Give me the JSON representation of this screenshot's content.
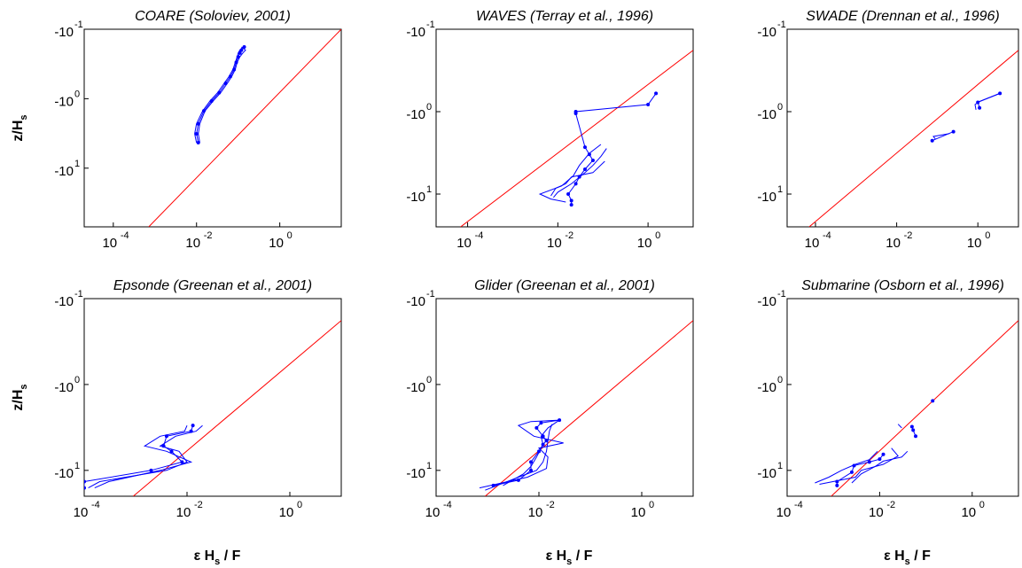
{
  "figure": {
    "xlabel_parts": [
      "ε H",
      "s",
      " / F"
    ],
    "ylabel_parts": [
      "z/H",
      "s"
    ]
  },
  "colors": {
    "data": "#0000ff",
    "reference": "#ff0000",
    "axes": "#000000"
  },
  "chart_data": [
    {
      "type": "line",
      "title": "COARE (Soloviev, 2001)",
      "xscale": "log",
      "yscale": "log",
      "xlim": [
        2e-05,
        30
      ],
      "ylim": [
        0.1,
        70
      ],
      "xticks": [
        {
          "base": "10",
          "exp": "-4"
        },
        {
          "base": "10",
          "exp": "-2"
        },
        {
          "base": "10",
          "exp": "0"
        }
      ],
      "yticks": [
        {
          "base": "-10",
          "exp": "-1"
        },
        {
          "base": "-10",
          "exp": "0"
        },
        {
          "base": "-10",
          "exp": "1"
        }
      ],
      "xlabel": "",
      "ylabel": "z/Hs",
      "reference": {
        "x": [
          0.00071,
          30
        ],
        "y": [
          70,
          0.1
        ]
      },
      "series": [
        {
          "marker": true,
          "x": [
            0.011,
            0.01,
            0.011,
            0.015,
            0.023,
            0.035,
            0.05,
            0.065,
            0.08,
            0.09,
            0.1,
            0.11,
            0.12,
            0.14
          ],
          "y": [
            4.3,
            3.2,
            2.3,
            1.5,
            1.08,
            0.82,
            0.6,
            0.48,
            0.38,
            0.3,
            0.25,
            0.22,
            0.2,
            0.18
          ]
        },
        {
          "marker": false,
          "x": [
            0.012,
            0.011,
            0.012,
            0.016,
            0.025,
            0.038,
            0.055,
            0.07,
            0.085,
            0.095,
            0.11,
            0.13,
            0.15,
            0.12
          ],
          "y": [
            4.3,
            3.2,
            2.3,
            1.5,
            1.08,
            0.82,
            0.6,
            0.48,
            0.38,
            0.3,
            0.25,
            0.22,
            0.2,
            0.18
          ]
        },
        {
          "marker": false,
          "x": [
            0.01,
            0.009,
            0.01,
            0.014,
            0.021,
            0.032,
            0.046,
            0.06,
            0.075,
            0.085,
            0.095,
            0.1,
            0.11,
            0.13
          ],
          "y": [
            4.3,
            3.2,
            2.3,
            1.5,
            1.08,
            0.82,
            0.6,
            0.48,
            0.38,
            0.3,
            0.25,
            0.22,
            0.2,
            0.18
          ]
        }
      ]
    },
    {
      "type": "line",
      "title": "WAVES (Terray et al., 1996)",
      "xscale": "log",
      "yscale": "log",
      "xlim": [
        2e-05,
        10
      ],
      "ylim": [
        0.1,
        25
      ],
      "xticks": [
        {
          "base": "10",
          "exp": "-4"
        },
        {
          "base": "10",
          "exp": "-2"
        },
        {
          "base": "10",
          "exp": "0"
        }
      ],
      "yticks": [
        {
          "base": "-10",
          "exp": "-1"
        },
        {
          "base": "-10",
          "exp": "0"
        },
        {
          "base": "-10",
          "exp": "1"
        }
      ],
      "xlabel": "",
      "ylabel": "",
      "reference": {
        "x": [
          7e-05,
          10
        ],
        "y": [
          25,
          0.18
        ]
      },
      "series": [
        {
          "marker": true,
          "x": [
            1.5,
            1.0,
            0.025,
            0.025,
            0.04,
            0.05,
            0.06,
            0.04,
            0.03,
            0.025,
            0.017,
            0.02,
            0.02
          ],
          "y": [
            0.6,
            0.82,
            1.0,
            1.05,
            2.7,
            3.3,
            3.9,
            5.0,
            6.2,
            7.5,
            10.0,
            12.0,
            13.5
          ]
        },
        {
          "marker": false,
          "x": [
            0.09,
            0.05,
            0.03,
            0.022,
            0.012,
            0.004,
            0.007,
            0.015
          ],
          "y": [
            2.5,
            3.2,
            4.5,
            6.0,
            8.0,
            10.0,
            11.5,
            12.5
          ]
        },
        {
          "marker": false,
          "x": [
            0.12,
            0.09,
            0.06,
            0.04,
            0.02,
            0.01,
            0.008
          ],
          "y": [
            2.8,
            3.5,
            4.5,
            5.5,
            7.5,
            9.5,
            11.0
          ]
        },
        {
          "marker": false,
          "x": [
            0.11,
            0.06,
            0.02,
            0.015,
            0.009,
            0.007
          ],
          "y": [
            4.0,
            5.5,
            6.2,
            7.5,
            8.5,
            10.5
          ]
        }
      ]
    },
    {
      "type": "line",
      "title": "SWADE (Drennan et al., 1996)",
      "xscale": "log",
      "yscale": "log",
      "xlim": [
        2e-05,
        10
      ],
      "ylim": [
        0.1,
        25
      ],
      "xticks": [
        {
          "base": "10",
          "exp": "-4"
        },
        {
          "base": "10",
          "exp": "-2"
        },
        {
          "base": "10",
          "exp": "0"
        }
      ],
      "yticks": [
        {
          "base": "-10",
          "exp": "-1"
        },
        {
          "base": "-10",
          "exp": "0"
        },
        {
          "base": "-10",
          "exp": "1"
        }
      ],
      "xlabel": "",
      "ylabel": "",
      "reference": {
        "x": [
          7e-05,
          10
        ],
        "y": [
          25,
          0.18
        ]
      },
      "series": [
        {
          "marker": true,
          "x": [
            3.5,
            1.0,
            1.1
          ],
          "y": [
            0.6,
            0.77,
            0.9
          ]
        },
        {
          "marker": true,
          "x": [
            0.25,
            0.075
          ],
          "y": [
            1.75,
            2.25
          ]
        },
        {
          "marker": false,
          "x": [
            3.5,
            1.1,
            0.85,
            0.9
          ],
          "y": [
            0.6,
            0.75,
            0.82,
            0.95
          ]
        },
        {
          "marker": false,
          "x": [
            0.2,
            0.08,
            0.09
          ],
          "y": [
            1.85,
            2.0,
            2.15
          ]
        }
      ]
    },
    {
      "type": "line",
      "title": "Epsonde (Greenan et al., 2001)",
      "xscale": "log",
      "yscale": "log",
      "xlim": [
        0.0001,
        10
      ],
      "ylim": [
        0.1,
        20
      ],
      "xticks": [
        {
          "base": "10",
          "exp": "-4"
        },
        {
          "base": "10",
          "exp": "-2"
        },
        {
          "base": "10",
          "exp": "0"
        }
      ],
      "yticks": [
        {
          "base": "-10",
          "exp": "-1"
        },
        {
          "base": "-10",
          "exp": "0"
        },
        {
          "base": "-10",
          "exp": "1"
        }
      ],
      "xlabel": "ε Hs / F",
      "ylabel": "z/Hs",
      "reference": {
        "x": [
          0.0009,
          10
        ],
        "y": [
          20,
          0.18
        ]
      },
      "series": [
        {
          "marker": true,
          "x": [
            0.013,
            0.012,
            0.004,
            0.0035,
            0.005,
            0.008,
            0.002,
            0.0001,
            0.0001
          ],
          "y": [
            3.0,
            3.5,
            4.0,
            5.2,
            6.0,
            8.0,
            10.0,
            13.5,
            16.0
          ]
        },
        {
          "marker": false,
          "x": [
            0.02,
            0.015,
            0.006,
            0.003,
            0.007,
            0.01,
            0.004,
            0.0002,
            0.00012
          ],
          "y": [
            3.0,
            3.5,
            4.0,
            5.2,
            6.0,
            8.0,
            10.0,
            13.5,
            16.0
          ]
        },
        {
          "marker": false,
          "x": [
            0.01,
            0.009,
            0.003,
            0.0015,
            0.004,
            0.012,
            0.003,
            0.0003,
            0.00016
          ],
          "y": [
            3.0,
            3.5,
            4.0,
            5.2,
            6.0,
            8.0,
            10.0,
            13.5,
            16.0
          ]
        }
      ]
    },
    {
      "type": "line",
      "title": "Glider (Greenan et al., 2001)",
      "xscale": "log",
      "yscale": "log",
      "xlim": [
        0.0001,
        10
      ],
      "ylim": [
        0.1,
        20
      ],
      "xticks": [
        {
          "base": "10",
          "exp": "-4"
        },
        {
          "base": "10",
          "exp": "-2"
        },
        {
          "base": "10",
          "exp": "0"
        }
      ],
      "yticks": [
        {
          "base": "-10",
          "exp": "-1"
        },
        {
          "base": "-10",
          "exp": "0"
        },
        {
          "base": "-10",
          "exp": "1"
        }
      ],
      "xlabel": "ε Hs / F",
      "ylabel": "",
      "reference": {
        "x": [
          0.0009,
          10
        ],
        "y": [
          20,
          0.18
        ]
      },
      "series": [
        {
          "marker": true,
          "x": [
            0.025,
            0.011,
            0.009,
            0.012,
            0.014,
            0.012,
            0.01,
            0.007,
            0.007,
            0.004,
            0.0013
          ],
          "y": [
            2.6,
            2.8,
            3.2,
            4.0,
            4.5,
            5.0,
            6.0,
            8.0,
            10.0,
            13.0,
            15.0
          ]
        },
        {
          "marker": false,
          "x": [
            0.025,
            0.007,
            0.004,
            0.008,
            0.03,
            0.01,
            0.015,
            0.014,
            0.006,
            0.0007
          ],
          "y": [
            2.6,
            2.7,
            3.0,
            4.0,
            4.8,
            5.5,
            7.0,
            9.5,
            12.0,
            16.0
          ]
        },
        {
          "marker": false,
          "x": [
            0.025,
            0.015,
            0.011,
            0.012,
            0.009,
            0.007,
            0.005,
            0.002
          ],
          "y": [
            2.6,
            3.2,
            4.0,
            5.0,
            7.0,
            9.0,
            11.0,
            15.0
          ]
        },
        {
          "marker": false,
          "x": [
            0.018,
            0.016,
            0.015,
            0.014,
            0.012,
            0.009,
            0.004,
            0.0009
          ],
          "y": [
            2.9,
            3.5,
            4.5,
            6.0,
            8.0,
            10.0,
            12.0,
            17.0
          ]
        }
      ]
    },
    {
      "type": "line",
      "title": "Submarine (Osborn et al., 1996)",
      "xscale": "log",
      "yscale": "log",
      "xlim": [
        0.0001,
        10
      ],
      "ylim": [
        0.1,
        20
      ],
      "xticks": [
        {
          "base": "10",
          "exp": "-4"
        },
        {
          "base": "10",
          "exp": "-2"
        },
        {
          "base": "10",
          "exp": "0"
        }
      ],
      "yticks": [
        {
          "base": "-10",
          "exp": "-1"
        },
        {
          "base": "-10",
          "exp": "0"
        },
        {
          "base": "-10",
          "exp": "1"
        }
      ],
      "xlabel": "ε Hs / F",
      "ylabel": "",
      "reference": {
        "x": [
          0.0009,
          10
        ],
        "y": [
          20,
          0.18
        ]
      },
      "series": [
        {
          "marker": true,
          "x": [
            0.14
          ],
          "y": [
            1.55
          ]
        },
        {
          "marker": true,
          "x": [
            0.05,
            0.053,
            0.06
          ],
          "y": [
            3.1,
            3.4,
            4.0
          ]
        },
        {
          "marker": true,
          "x": [
            0.012,
            0.01,
            0.006,
            0.0028,
            0.0025,
            0.0012,
            0.0012
          ],
          "y": [
            6.5,
            7.4,
            8.0,
            8.8,
            10.5,
            13.5,
            15.0
          ]
        },
        {
          "marker": false,
          "x": [
            0.018,
            0.025,
            0.012,
            0.004,
            0.003,
            0.0005
          ],
          "y": [
            5.5,
            6.8,
            8.5,
            10.0,
            12.0,
            14.5
          ]
        },
        {
          "marker": false,
          "x": [
            0.009,
            0.006,
            0.003,
            0.0015,
            0.0008,
            0.0004
          ],
          "y": [
            6.0,
            7.5,
            8.5,
            10.0,
            12.0,
            14.0
          ]
        },
        {
          "marker": false,
          "x": [
            0.04,
            0.03,
            0.012,
            0.008,
            0.004,
            0.0025
          ],
          "y": [
            6.0,
            7.0,
            7.8,
            9.0,
            11.0,
            14.0
          ]
        },
        {
          "marker": false,
          "x": [
            0.025,
            0.03
          ],
          "y": [
            2.9,
            3.2
          ]
        }
      ]
    }
  ]
}
